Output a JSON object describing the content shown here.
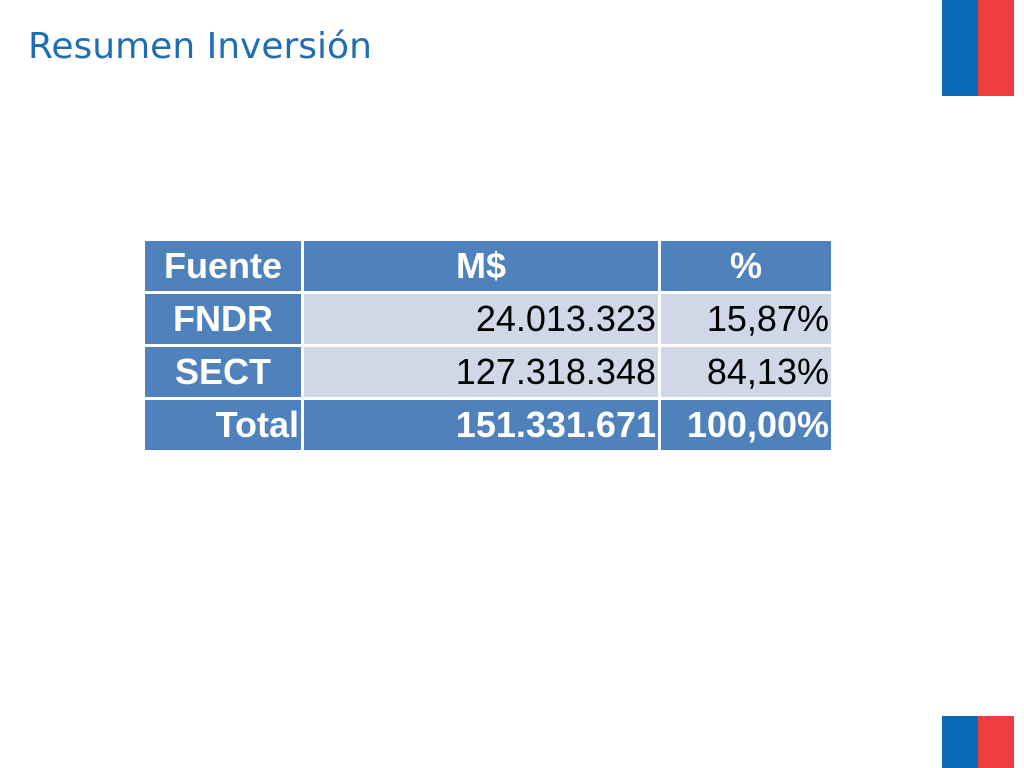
{
  "header": {
    "title": "Resumen Inversión"
  },
  "table": {
    "columns": [
      "Fuente",
      "M$",
      "%"
    ],
    "rows": [
      [
        "FNDR",
        "24.013.323",
        "15,87%"
      ],
      [
        "SECT",
        "127.318.348",
        "84,13%"
      ],
      [
        "Total",
        "151.331.671",
        "100,00%"
      ]
    ]
  }
}
